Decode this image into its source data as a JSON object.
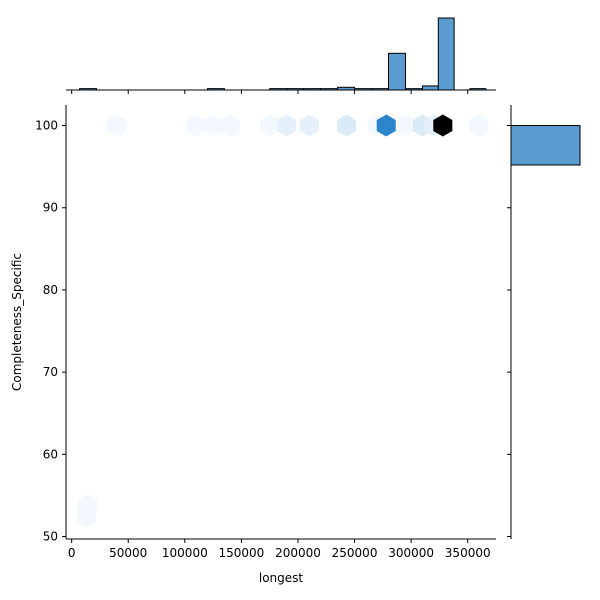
{
  "chart_data": {
    "type": "hexbin-joint",
    "xlabel": "longest",
    "ylabel": "Completeness_Specific",
    "xlim": [
      -5000,
      375000
    ],
    "ylim": [
      49.7,
      102.5
    ],
    "xticks": [
      0,
      50000,
      100000,
      150000,
      200000,
      250000,
      300000,
      350000
    ],
    "yticks": [
      50,
      60,
      70,
      80,
      90,
      100
    ],
    "colors": {
      "bar": "#5a9bd0",
      "edge": "#000000",
      "hex_max": "#000000",
      "hex_strong": "#2b86cc",
      "hex_pale": "#f2f8fd"
    },
    "hexbins": [
      {
        "x": 13000,
        "y": 52.5,
        "count": 1
      },
      {
        "x": 14000,
        "y": 53.8,
        "count": 1
      },
      {
        "x": 40000,
        "y": 100,
        "count": 1
      },
      {
        "x": 110000,
        "y": 100,
        "count": 1
      },
      {
        "x": 125000,
        "y": 100,
        "count": 1
      },
      {
        "x": 140000,
        "y": 100,
        "count": 1
      },
      {
        "x": 175000,
        "y": 100,
        "count": 1
      },
      {
        "x": 190000,
        "y": 100,
        "count": 2
      },
      {
        "x": 210000,
        "y": 100,
        "count": 2
      },
      {
        "x": 243000,
        "y": 100,
        "count": 3
      },
      {
        "x": 270000,
        "y": 100,
        "count": 1
      },
      {
        "x": 278000,
        "y": 100,
        "count": 25
      },
      {
        "x": 295000,
        "y": 100,
        "count": 1
      },
      {
        "x": 310000,
        "y": 100,
        "count": 3
      },
      {
        "x": 320000,
        "y": 100,
        "count": 2
      },
      {
        "x": 328000,
        "y": 100,
        "count": 38
      },
      {
        "x": 360000,
        "y": 100,
        "count": 1
      }
    ],
    "x_hist": {
      "bins": [
        {
          "x0": 7000,
          "x1": 22000,
          "count": 1
        },
        {
          "x0": 120000,
          "x1": 135000,
          "count": 1
        },
        {
          "x0": 175000,
          "x1": 190000,
          "count": 1
        },
        {
          "x0": 190000,
          "x1": 205000,
          "count": 1
        },
        {
          "x0": 205000,
          "x1": 220000,
          "count": 1
        },
        {
          "x0": 220000,
          "x1": 235000,
          "count": 1
        },
        {
          "x0": 235000,
          "x1": 250000,
          "count": 2
        },
        {
          "x0": 250000,
          "x1": 265000,
          "count": 1
        },
        {
          "x0": 265000,
          "x1": 280000,
          "count": 1
        },
        {
          "x0": 280000,
          "x1": 295000,
          "count": 27
        },
        {
          "x0": 295000,
          "x1": 310000,
          "count": 1
        },
        {
          "x0": 310000,
          "x1": 324000,
          "count": 3
        },
        {
          "x0": 324000,
          "x1": 338000,
          "count": 53
        },
        {
          "x0": 352000,
          "x1": 366000,
          "count": 1
        }
      ]
    },
    "y_hist": {
      "bins": [
        {
          "y0": 95.2,
          "y1": 100,
          "count": 69
        }
      ],
      "max_count": 69
    }
  }
}
